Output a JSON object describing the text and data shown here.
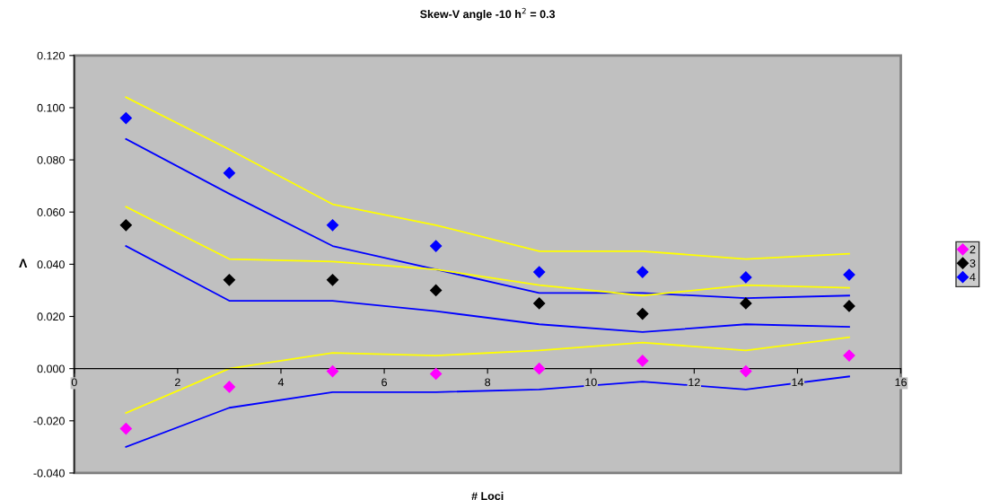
{
  "chart_data": {
    "type": "scatter",
    "title": "Skew-V angle -10 h$^{2}$ = 0.3",
    "xlabel": "# Loci",
    "ylabel": "Λ",
    "x": [
      1,
      3,
      5,
      7,
      9,
      11,
      13,
      15
    ],
    "series": [
      {
        "name": "2",
        "color": "#ff00ff",
        "marker": "diamond",
        "values": [
          -0.023,
          -0.007,
          -0.001,
          -0.002,
          0.0,
          0.003,
          -0.001,
          0.005
        ]
      },
      {
        "name": "3",
        "color": "#000000",
        "marker": "diamond",
        "values": [
          0.055,
          0.034,
          0.034,
          0.03,
          0.025,
          0.021,
          0.025,
          0.024
        ]
      },
      {
        "name": "4",
        "color": "#0000ff",
        "marker": "diamond",
        "values": [
          0.096,
          0.075,
          0.055,
          0.047,
          0.037,
          0.037,
          0.035,
          0.036
        ]
      },
      {
        "type": "line",
        "color": "#ffff00",
        "values": [
          0.104,
          0.084,
          0.063,
          0.055,
          0.045,
          0.045,
          0.042,
          0.044
        ]
      },
      {
        "type": "line",
        "color": "#0000ff",
        "values": [
          0.088,
          0.067,
          0.047,
          0.038,
          0.029,
          0.029,
          0.027,
          0.028
        ]
      },
      {
        "type": "line",
        "color": "#ffff00",
        "values": [
          0.062,
          0.042,
          0.041,
          0.038,
          0.032,
          0.028,
          0.032,
          0.031
        ]
      },
      {
        "type": "line",
        "color": "#0000ff",
        "values": [
          0.047,
          0.026,
          0.026,
          0.022,
          0.017,
          0.014,
          0.017,
          0.016
        ]
      },
      {
        "type": "line",
        "color": "#ffff00",
        "values": [
          -0.017,
          0.0,
          0.006,
          0.005,
          0.007,
          0.01,
          0.007,
          0.012
        ]
      },
      {
        "type": "line",
        "color": "#0000ff",
        "values": [
          -0.03,
          -0.015,
          -0.009,
          -0.009,
          -0.008,
          -0.005,
          -0.008,
          -0.003
        ]
      }
    ],
    "grid": false,
    "legend": "right",
    "xlim": [
      0,
      16
    ],
    "xticks": [
      0,
      2,
      4,
      6,
      8,
      10,
      12,
      14,
      16
    ],
    "ylim": [
      -0.04,
      0.12
    ],
    "yticks": [
      {
        "value": -0.04,
        "label": "-0.040"
      },
      {
        "value": -0.02,
        "label": "-0.020"
      },
      {
        "value": 0,
        "label": "0.000"
      },
      {
        "value": 0.02,
        "label": "0.020"
      },
      {
        "value": 0.04,
        "label": "0.040"
      },
      {
        "value": 0.06,
        "label": "0.060"
      },
      {
        "value": 0.08,
        "label": "0.080"
      },
      {
        "value": 0.1,
        "label": "0.100"
      },
      {
        "value": 0.12,
        "label": "0.120"
      }
    ]
  }
}
